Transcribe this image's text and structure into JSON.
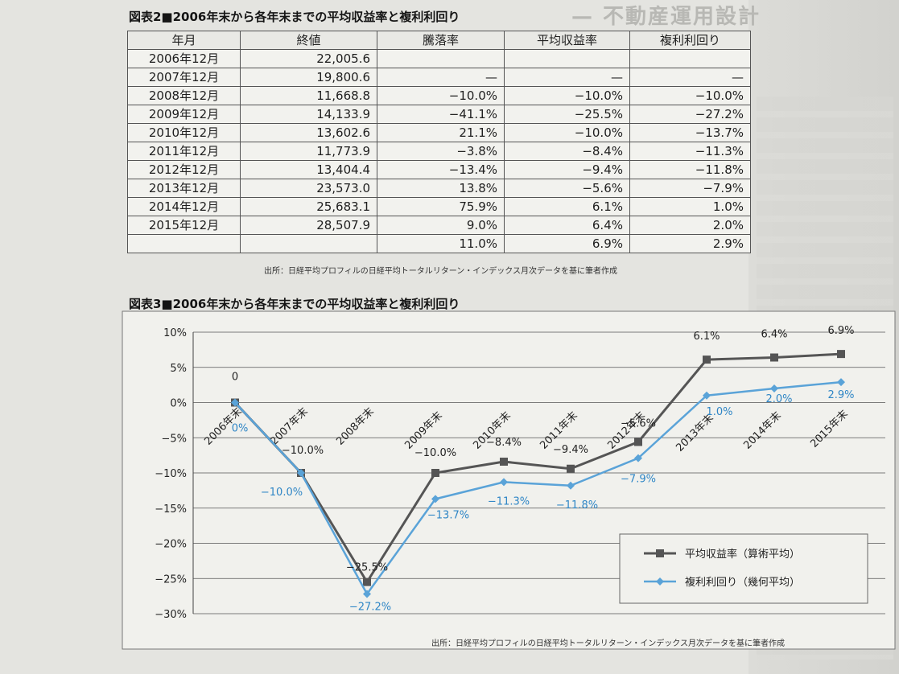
{
  "table_caption": "図表2■2006年末から各年末までの平均収益率と複利利回り",
  "table": {
    "headers": [
      "年月",
      "終値",
      "騰落率",
      "平均収益率",
      "複利利回り"
    ],
    "rows": [
      [
        "2006年12月",
        "22,005.6",
        "",
        "",
        ""
      ],
      [
        "2007年12月",
        "19,800.6",
        "—",
        "—",
        "—"
      ],
      [
        "2008年12月",
        "11,668.8",
        "−10.0%",
        "−10.0%",
        "−10.0%"
      ],
      [
        "2009年12月",
        "14,133.9",
        "−41.1%",
        "−25.5%",
        "−27.2%"
      ],
      [
        "2010年12月",
        "13,602.6",
        "21.1%",
        "−10.0%",
        "−13.7%"
      ],
      [
        "2011年12月",
        "11,773.9",
        "−3.8%",
        "−8.4%",
        "−11.3%"
      ],
      [
        "2012年12月",
        "13,404.4",
        "−13.4%",
        "−9.4%",
        "−11.8%"
      ],
      [
        "2013年12月",
        "23,573.0",
        "13.8%",
        "−5.6%",
        "−7.9%"
      ],
      [
        "2014年12月",
        "25,683.1",
        "75.9%",
        "6.1%",
        "1.0%"
      ],
      [
        "2015年12月",
        "28,507.9",
        "9.0%",
        "6.4%",
        "2.0%"
      ],
      [
        "",
        "",
        "11.0%",
        "6.9%",
        "2.9%"
      ]
    ],
    "source": "出所：日経平均プロフィルの日経平均トータルリターン・インデックス月次データを基に筆者作成"
  },
  "chart_caption": "図表3■2006年末から各年末までの平均収益率と複利利回り",
  "chart_source": "出所：日経平均プロフィルの日経平均トータルリターン・インデックス月次データを基に筆者作成",
  "background_header": "— 不動産運用設計",
  "colors": {
    "avg": "#555555",
    "compound": "#5aa3d8"
  },
  "chart_data": {
    "type": "line",
    "categories": [
      "2006年末",
      "2007年末",
      "2008年末",
      "2009年末",
      "2010年末",
      "2011年末",
      "2012年末",
      "2013年末",
      "2014年末",
      "2015年末"
    ],
    "yticks": [
      "10%",
      "5%",
      "0%",
      "−5%",
      "−10%",
      "−15%",
      "−20%",
      "−25%",
      "−30%"
    ],
    "ylim": [
      -30,
      10
    ],
    "grid": true,
    "legend_position": "bottom-right",
    "series": [
      {
        "name": "平均収益率（算術平均）",
        "marker": "square",
        "values": [
          0,
          -10.0,
          -25.5,
          -10.0,
          -8.4,
          -9.4,
          -5.6,
          6.1,
          6.4,
          6.9
        ],
        "labels": [
          "0",
          "−10.0%",
          "−25.5%",
          "−10.0%",
          "−8.4%",
          "−9.4%",
          "−5.6%",
          "6.1%",
          "6.4%",
          "6.9%"
        ]
      },
      {
        "name": "複利利回り（幾何平均）",
        "marker": "diamond",
        "values": [
          0,
          -10.0,
          -27.2,
          -13.7,
          -11.3,
          -11.8,
          -7.9,
          1.0,
          2.0,
          2.9
        ],
        "labels": [
          "0%",
          "−10.0%",
          "−27.2%",
          "−13.7%",
          "−11.3%",
          "−11.8%",
          "−7.9%",
          "1.0%",
          "2.0%",
          "2.9%"
        ]
      }
    ]
  }
}
